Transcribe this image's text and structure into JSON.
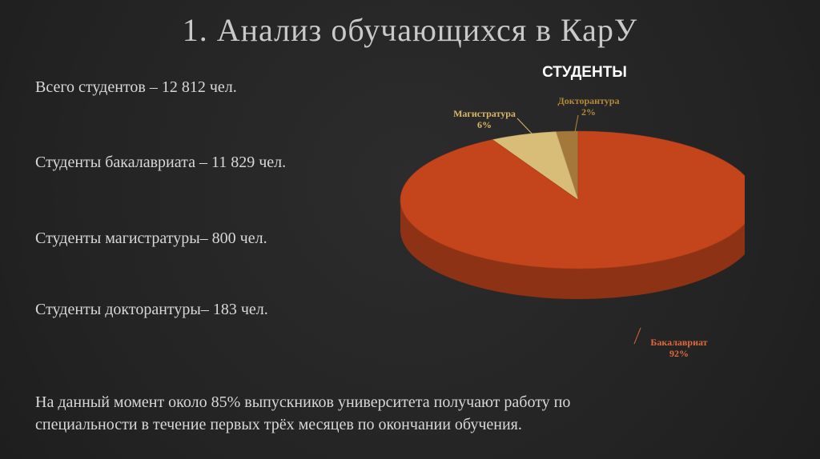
{
  "title": "1. Анализ обучающихся в КарУ",
  "stats": [
    "Всего студентов – 12 812 чел.",
    "Студенты бакалавриата – 11 829 чел.",
    "Студенты магистратуры– 800 чел.",
    "Студенты докторантуры– 183 чел."
  ],
  "footer": [
    "На данный момент около 85% выпускников университета получают работу по",
    "специальности в течение первых трёх месяцев по окончании обучения."
  ],
  "chart_data": {
    "type": "pie",
    "title": "СТУДЕНТЫ",
    "slices": [
      {
        "label": "Бакалавриат",
        "value": 92,
        "value_label": "92%",
        "color": "#c4451c",
        "label_color": "#e06a3c"
      },
      {
        "label": "Магистратура",
        "value": 6,
        "value_label": "6%",
        "color": "#d8bd78",
        "label_color": "#d8b868"
      },
      {
        "label": "Докторантура",
        "value": 2,
        "value_label": "2%",
        "color": "#a4773a",
        "label_color": "#b58a3a"
      }
    ]
  }
}
